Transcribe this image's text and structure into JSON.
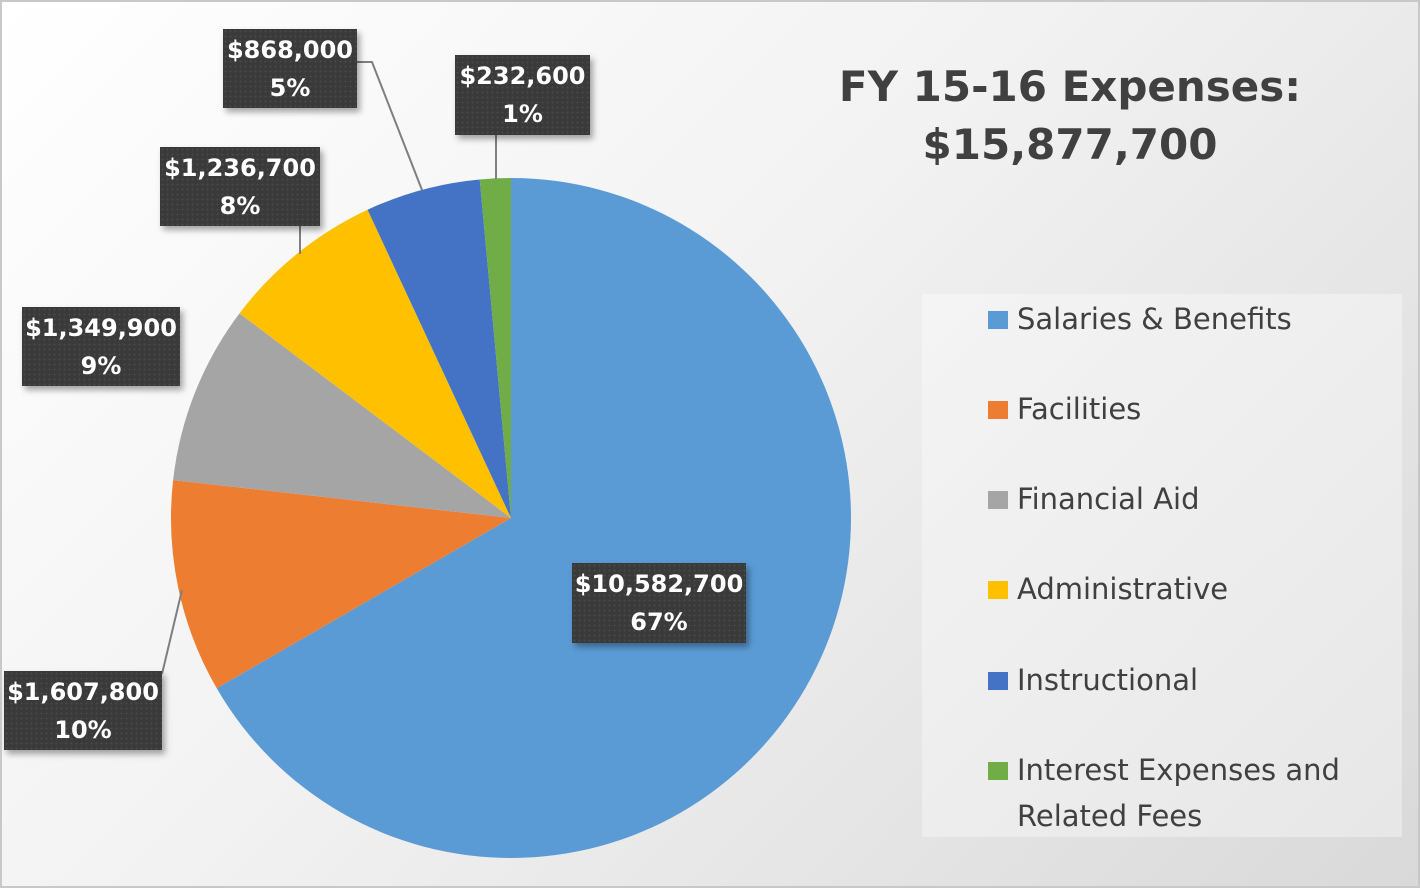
{
  "chart_data": {
    "type": "pie",
    "title_line1": "FY 15-16 Expenses:",
    "title_line2": "$15,877,700",
    "start_angle": "top, clockwise",
    "legend_position": "right",
    "slices": [
      {
        "name": "Salaries & Benefits",
        "value": 10582700,
        "value_label": "$10,582,700",
        "percent_label": "67%",
        "color": "#5B9BD5"
      },
      {
        "name": "Facilities",
        "value": 1607800,
        "value_label": "$1,607,800",
        "percent_label": "10%",
        "color": "#ED7D31"
      },
      {
        "name": "Financial Aid",
        "value": 1349900,
        "value_label": "$1,349,900",
        "percent_label": "9%",
        "color": "#A5A5A5"
      },
      {
        "name": "Administrative",
        "value": 1236700,
        "value_label": "$1,236,700",
        "percent_label": "8%",
        "color": "#FFC000"
      },
      {
        "name": "Instructional",
        "value": 868000,
        "value_label": "$868,000",
        "percent_label": "5%",
        "color": "#4472C4"
      },
      {
        "name": "Interest Expenses and Related Fees",
        "value": 232600,
        "value_label": "$232,600",
        "percent_label": "1%",
        "color": "#70AD47"
      }
    ]
  }
}
